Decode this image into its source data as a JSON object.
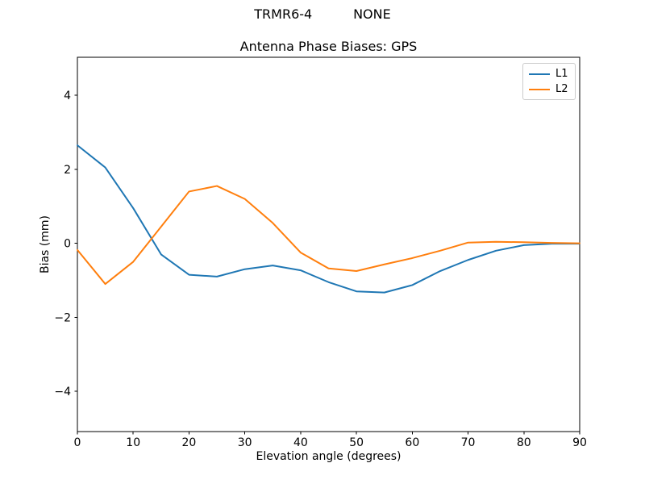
{
  "chart_data": {
    "type": "line",
    "suptitle": "TRMR6-4          NONE",
    "title": "Antenna Phase Biases: GPS",
    "xlabel": "Elevation angle (degrees)",
    "ylabel": "Bias (mm)",
    "xlim": [
      0,
      90
    ],
    "ylim": [
      -5.09,
      5.03
    ],
    "xticks": [
      0,
      10,
      20,
      30,
      40,
      50,
      60,
      70,
      80,
      90
    ],
    "yticks": [
      -4,
      -2,
      0,
      2,
      4
    ],
    "grid": false,
    "legend_position": "upper right",
    "x": [
      0,
      5,
      10,
      15,
      20,
      25,
      30,
      35,
      40,
      45,
      50,
      55,
      60,
      65,
      70,
      75,
      80,
      85,
      90
    ],
    "series": [
      {
        "name": "L1",
        "color": "#1f77b4",
        "values": [
          2.65,
          2.05,
          0.95,
          -0.3,
          -0.85,
          -0.9,
          -0.7,
          -0.6,
          -0.73,
          -1.05,
          -1.3,
          -1.33,
          -1.13,
          -0.75,
          -0.45,
          -0.2,
          -0.05,
          -0.01,
          -0.01
        ]
      },
      {
        "name": "L2",
        "color": "#ff7f0e",
        "values": [
          -0.18,
          -1.1,
          -0.5,
          0.45,
          1.4,
          1.55,
          1.2,
          0.55,
          -0.25,
          -0.68,
          -0.75,
          -0.57,
          -0.4,
          -0.2,
          0.02,
          0.04,
          0.03,
          0.01,
          0.0
        ]
      }
    ]
  }
}
